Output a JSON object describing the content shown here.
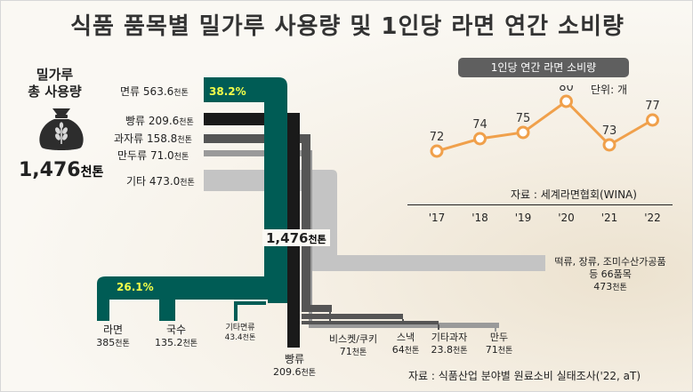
{
  "title": "식품 품목별 밀가루 사용량 및 1인당 라면 연간 소비량",
  "total_box": {
    "label_line1": "밀가루",
    "label_line2": "총 사용량",
    "value": "1,476",
    "unit": "천톤"
  },
  "center_total": {
    "value": "1,476",
    "unit": "천톤"
  },
  "sankey_left": [
    {
      "name": "면류",
      "value": "563.6",
      "unit": "천톤",
      "pct": "38.2%"
    },
    {
      "name": "빵류",
      "value": "209.6",
      "unit": "천톤"
    },
    {
      "name": "과자류",
      "value": "158.8",
      "unit": "천톤"
    },
    {
      "name": "만두류",
      "value": "71.0",
      "unit": "천톤"
    },
    {
      "name": "기타",
      "value": "473.0",
      "unit": "천톤"
    }
  ],
  "sankey_bottom": {
    "ramen_pct": "26.1%",
    "ramen": {
      "name": "라면",
      "value": "385",
      "unit": "천톤"
    },
    "noodle": {
      "name": "국수",
      "value": "135.2",
      "unit": "천톤"
    },
    "etc_noodle": {
      "name": "기타면류",
      "value": "43.4",
      "unit": "천톤"
    },
    "bread": {
      "name": "빵류",
      "value": "209.6",
      "unit": "천톤"
    },
    "biscuit": {
      "name": "비스켓/쿠키",
      "value": "71",
      "unit": "천톤"
    },
    "snack": {
      "name": "스낵",
      "value": "64",
      "unit": "천톤"
    },
    "etc_snack": {
      "name": "기타과자",
      "value": "23.8",
      "unit": "천톤"
    },
    "dumpling": {
      "name": "만두",
      "value": "71",
      "unit": "천톤"
    },
    "etc_right": {
      "line1": "떡류, 장류, 조미수산가공품",
      "line2": "등 66품목",
      "value": "473",
      "unit": "천톤"
    }
  },
  "line_chart_header": "1인당 연간 라면 소비량",
  "unit_label": "단위: 개",
  "line_source": "자료 : 세계라면협회(WINA)",
  "bottom_source": "자료 : 식품산업 분야별 원료소비 실태조사('22, aT)",
  "colors": {
    "teal": "#005c55",
    "black": "#1a1a1a",
    "dark_gray": "#555555",
    "mid_gray": "#8c8c8c",
    "light_gray": "#c4c4c4",
    "orange": "#f0a04b",
    "header_bg": "#5f5f5f"
  },
  "chart_data": {
    "type": "line",
    "title": "1인당 연간 라면 소비량",
    "categories": [
      "'17",
      "'18",
      "'19",
      "'20",
      "'21",
      "'22"
    ],
    "values": [
      72,
      74,
      75,
      80,
      73,
      77
    ],
    "ylabel": "단위: 개",
    "ylim": [
      70,
      82
    ],
    "grid": false
  }
}
